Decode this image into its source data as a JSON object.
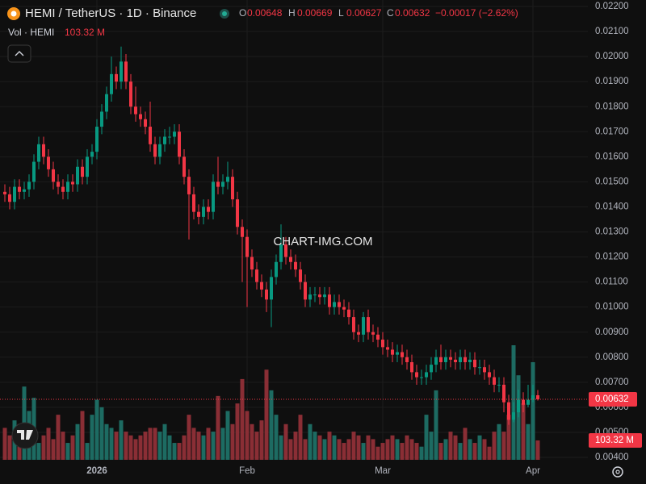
{
  "header": {
    "symbol": "HEMI / TetherUS · 1D · Binance",
    "o": "O",
    "h": "H",
    "l": "L",
    "c": "C",
    "change": "−0.00017 (−2.62%)"
  },
  "watermark": "CHART-IMG.COM",
  "chart_data": {
    "type": "candlestick",
    "categories": [
      null,
      null,
      null,
      null,
      null,
      null,
      null,
      null,
      null,
      null,
      null,
      null,
      null,
      null,
      null,
      null,
      null,
      null,
      null,
      "2026",
      null,
      null,
      null,
      null,
      null,
      null,
      null,
      null,
      null,
      null,
      null,
      null,
      null,
      null,
      null,
      null,
      null,
      null,
      null,
      null,
      null,
      null,
      null,
      null,
      null,
      null,
      null,
      null,
      null,
      null,
      "Feb",
      null,
      null,
      null,
      null,
      null,
      null,
      null,
      null,
      null,
      null,
      null,
      null,
      null,
      null,
      null,
      null,
      null,
      null,
      null,
      null,
      null,
      null,
      null,
      null,
      null,
      null,
      null,
      "Mar",
      null,
      null,
      null,
      null,
      null,
      null,
      null,
      null,
      null,
      null,
      null,
      null,
      null,
      null,
      null,
      null,
      null,
      null,
      null,
      null,
      null,
      null,
      null,
      null,
      null,
      null,
      null,
      null,
      null,
      null,
      "Apr",
      null
    ],
    "open": [
      0.0146,
      0.0145,
      0.0142,
      0.0148,
      0.0146,
      0.0147,
      0.015,
      0.0158,
      0.0165,
      0.016,
      0.0155,
      0.015,
      0.0148,
      0.0146,
      0.015,
      0.0149,
      0.0156,
      0.0152,
      0.016,
      0.0162,
      0.0172,
      0.0178,
      0.0185,
      0.0193,
      0.019,
      0.0198,
      0.019,
      0.018,
      0.0177,
      0.0175,
      0.0172,
      0.0165,
      0.016,
      0.0165,
      0.0168,
      0.0168,
      0.017,
      0.016,
      0.0152,
      0.0145,
      0.0138,
      0.0136,
      0.014,
      0.0138,
      0.015,
      0.0148,
      0.015,
      0.0152,
      0.0143,
      0.0132,
      0.0128,
      0.012,
      0.0115,
      0.011,
      0.0107,
      0.0103,
      0.0112,
      0.0118,
      0.0125,
      0.012,
      0.0118,
      0.0115,
      0.011,
      0.0103,
      0.0105,
      0.0105,
      0.0104,
      0.0105,
      0.01,
      0.0102,
      0.01,
      0.0099,
      0.0096,
      0.009,
      0.0089,
      0.0096,
      0.009,
      0.0089,
      0.0087,
      0.0084,
      0.0083,
      0.0081,
      0.0082,
      0.008,
      0.0078,
      0.0074,
      0.0072,
      0.0072,
      0.0074,
      0.0077,
      0.008,
      0.0078,
      0.008,
      0.0079,
      0.0078,
      0.008,
      0.0078,
      0.0079,
      0.0076,
      0.0076,
      0.0074,
      0.0072,
      0.0069,
      0.0069,
      0.0062,
      0.0055,
      0.0058,
      0.0063,
      0.0061,
      0.0063,
      0.00648
    ],
    "high": [
      0.0149,
      0.0148,
      0.0151,
      0.0151,
      0.015,
      0.0153,
      0.0161,
      0.0168,
      0.0168,
      0.0163,
      0.0158,
      0.0153,
      0.0151,
      0.0153,
      0.0153,
      0.0159,
      0.0159,
      0.0163,
      0.0165,
      0.0175,
      0.0181,
      0.0188,
      0.02,
      0.0196,
      0.0204,
      0.0201,
      0.0193,
      0.0188,
      0.018,
      0.0178,
      0.0182,
      0.0168,
      0.0168,
      0.0171,
      0.0172,
      0.0173,
      0.0173,
      0.0163,
      0.0155,
      0.0148,
      0.0141,
      0.0143,
      0.0143,
      0.0153,
      0.016,
      0.0153,
      0.0158,
      0.0155,
      0.0146,
      0.0135,
      0.0131,
      0.0123,
      0.0118,
      0.0113,
      0.011,
      0.0115,
      0.0121,
      0.0133,
      0.0128,
      0.0123,
      0.0121,
      0.0118,
      0.0113,
      0.0108,
      0.0108,
      0.0108,
      0.0108,
      0.0108,
      0.0105,
      0.0105,
      0.0103,
      0.0102,
      0.0099,
      0.0093,
      0.0098,
      0.0099,
      0.0093,
      0.0092,
      0.009,
      0.0087,
      0.0086,
      0.0085,
      0.0085,
      0.0083,
      0.0081,
      0.0077,
      0.0075,
      0.0077,
      0.008,
      0.0083,
      0.0085,
      0.0083,
      0.0083,
      0.0082,
      0.0083,
      0.0083,
      0.0082,
      0.0082,
      0.0079,
      0.0079,
      0.0077,
      0.0075,
      0.0072,
      0.0072,
      0.0065,
      0.0062,
      0.0067,
      0.0066,
      0.0069,
      0.0069,
      0.00669
    ],
    "low": [
      0.0142,
      0.0139,
      0.0139,
      0.0143,
      0.0143,
      0.0144,
      0.0147,
      0.0155,
      0.0157,
      0.0152,
      0.0147,
      0.0145,
      0.0143,
      0.0143,
      0.0146,
      0.0146,
      0.0149,
      0.0149,
      0.0157,
      0.0159,
      0.0169,
      0.0175,
      0.0182,
      0.0187,
      0.0187,
      0.0187,
      0.0177,
      0.0174,
      0.0172,
      0.0169,
      0.0162,
      0.0157,
      0.0157,
      0.0162,
      0.0165,
      0.0165,
      0.0157,
      0.0149,
      0.0127,
      0.0135,
      0.0133,
      0.0133,
      0.0135,
      0.0135,
      0.0145,
      0.0145,
      0.0147,
      0.014,
      0.0129,
      0.011,
      0.01,
      0.0112,
      0.0107,
      0.0104,
      0.0098,
      0.0092,
      0.0109,
      0.0115,
      0.0117,
      0.0115,
      0.0112,
      0.0107,
      0.01,
      0.01,
      0.0102,
      0.0101,
      0.0101,
      0.0097,
      0.0097,
      0.0097,
      0.0096,
      0.0093,
      0.0087,
      0.0086,
      0.0086,
      0.0087,
      0.0086,
      0.0084,
      0.0081,
      0.008,
      0.0078,
      0.0078,
      0.0077,
      0.0075,
      0.0071,
      0.0069,
      0.0069,
      0.0069,
      0.0071,
      0.0074,
      0.0075,
      0.0075,
      0.0076,
      0.0075,
      0.0075,
      0.0075,
      0.0075,
      0.0073,
      0.0073,
      0.0071,
      0.0069,
      0.0066,
      0.0066,
      0.0058,
      0.0053,
      0.0054,
      0.0056,
      0.0058,
      0.006,
      0.0062,
      0.00627
    ],
    "close": [
      0.0145,
      0.0142,
      0.0148,
      0.0146,
      0.0147,
      0.015,
      0.0158,
      0.0165,
      0.016,
      0.0155,
      0.015,
      0.0148,
      0.0146,
      0.015,
      0.0149,
      0.0156,
      0.0152,
      0.016,
      0.0162,
      0.0172,
      0.0178,
      0.0185,
      0.0193,
      0.019,
      0.0198,
      0.019,
      0.018,
      0.0177,
      0.0175,
      0.0172,
      0.0165,
      0.016,
      0.0165,
      0.0168,
      0.0168,
      0.017,
      0.016,
      0.0152,
      0.0145,
      0.0138,
      0.0136,
      0.014,
      0.0138,
      0.015,
      0.0148,
      0.015,
      0.0152,
      0.0143,
      0.0132,
      0.0128,
      0.012,
      0.0115,
      0.011,
      0.0107,
      0.0103,
      0.0112,
      0.0118,
      0.0125,
      0.012,
      0.0118,
      0.0115,
      0.011,
      0.0103,
      0.0105,
      0.0105,
      0.0104,
      0.0105,
      0.01,
      0.0102,
      0.01,
      0.0099,
      0.0096,
      0.009,
      0.0089,
      0.0096,
      0.009,
      0.0089,
      0.0087,
      0.0084,
      0.0083,
      0.0081,
      0.0082,
      0.008,
      0.0078,
      0.0074,
      0.0072,
      0.0072,
      0.0074,
      0.0077,
      0.008,
      0.0078,
      0.008,
      0.0079,
      0.0078,
      0.008,
      0.0078,
      0.0079,
      0.0076,
      0.0076,
      0.0074,
      0.0072,
      0.0069,
      0.0069,
      0.0062,
      0.0055,
      0.0058,
      0.0063,
      0.0061,
      0.0063,
      0.00648,
      0.00632
    ],
    "up_color": "#089981",
    "down_color": "#f23645",
    "ylim": [
      0.004,
      0.022
    ],
    "yticks": [
      {
        "value": 0.004,
        "label": "0.00400"
      },
      {
        "value": 0.005,
        "label": "0.00500"
      },
      {
        "value": 0.006,
        "label": "0.00600"
      },
      {
        "value": 0.007,
        "label": "0.00700"
      },
      {
        "value": 0.008,
        "label": "0.00800"
      },
      {
        "value": 0.009,
        "label": "0.00900"
      },
      {
        "value": 0.01,
        "label": "0.01000"
      },
      {
        "value": 0.011,
        "label": "0.01100"
      },
      {
        "value": 0.012,
        "label": "0.01200"
      },
      {
        "value": 0.013,
        "label": "0.01300"
      },
      {
        "value": 0.014,
        "label": "0.01400"
      },
      {
        "value": 0.015,
        "label": "0.01500"
      },
      {
        "value": 0.016,
        "label": "0.01600"
      },
      {
        "value": 0.017,
        "label": "0.01700"
      },
      {
        "value": 0.018,
        "label": "0.01800"
      },
      {
        "value": 0.019,
        "label": "0.01900"
      },
      {
        "value": 0.02,
        "label": "0.02000"
      },
      {
        "value": 0.021,
        "label": "0.02100"
      },
      {
        "value": 0.022,
        "label": "0.02200"
      }
    ],
    "grid": true,
    "volume": {
      "name": "Vol · HEMI",
      "label": "103.32 M",
      "up_color": "#1d6b62",
      "down_color": "#8a2e35",
      "values": [
        170,
        130,
        210,
        190,
        390,
        260,
        330,
        90,
        130,
        170,
        110,
        240,
        150,
        90,
        130,
        190,
        260,
        90,
        240,
        320,
        280,
        190,
        170,
        150,
        210,
        150,
        130,
        110,
        130,
        150,
        170,
        170,
        150,
        190,
        130,
        90,
        90,
        130,
        240,
        170,
        150,
        130,
        170,
        150,
        340,
        170,
        260,
        190,
        300,
        430,
        260,
        190,
        150,
        210,
        480,
        370,
        240,
        130,
        190,
        110,
        150,
        240,
        110,
        190,
        150,
        130,
        110,
        150,
        130,
        110,
        90,
        110,
        150,
        130,
        90,
        130,
        110,
        70,
        90,
        110,
        130,
        110,
        90,
        130,
        110,
        90,
        70,
        240,
        150,
        370,
        90,
        110,
        150,
        130,
        90,
        170,
        110,
        90,
        130,
        110,
        70,
        150,
        190,
        150,
        240,
        610,
        450,
        300,
        190,
        520,
        103.32
      ]
    }
  }
}
